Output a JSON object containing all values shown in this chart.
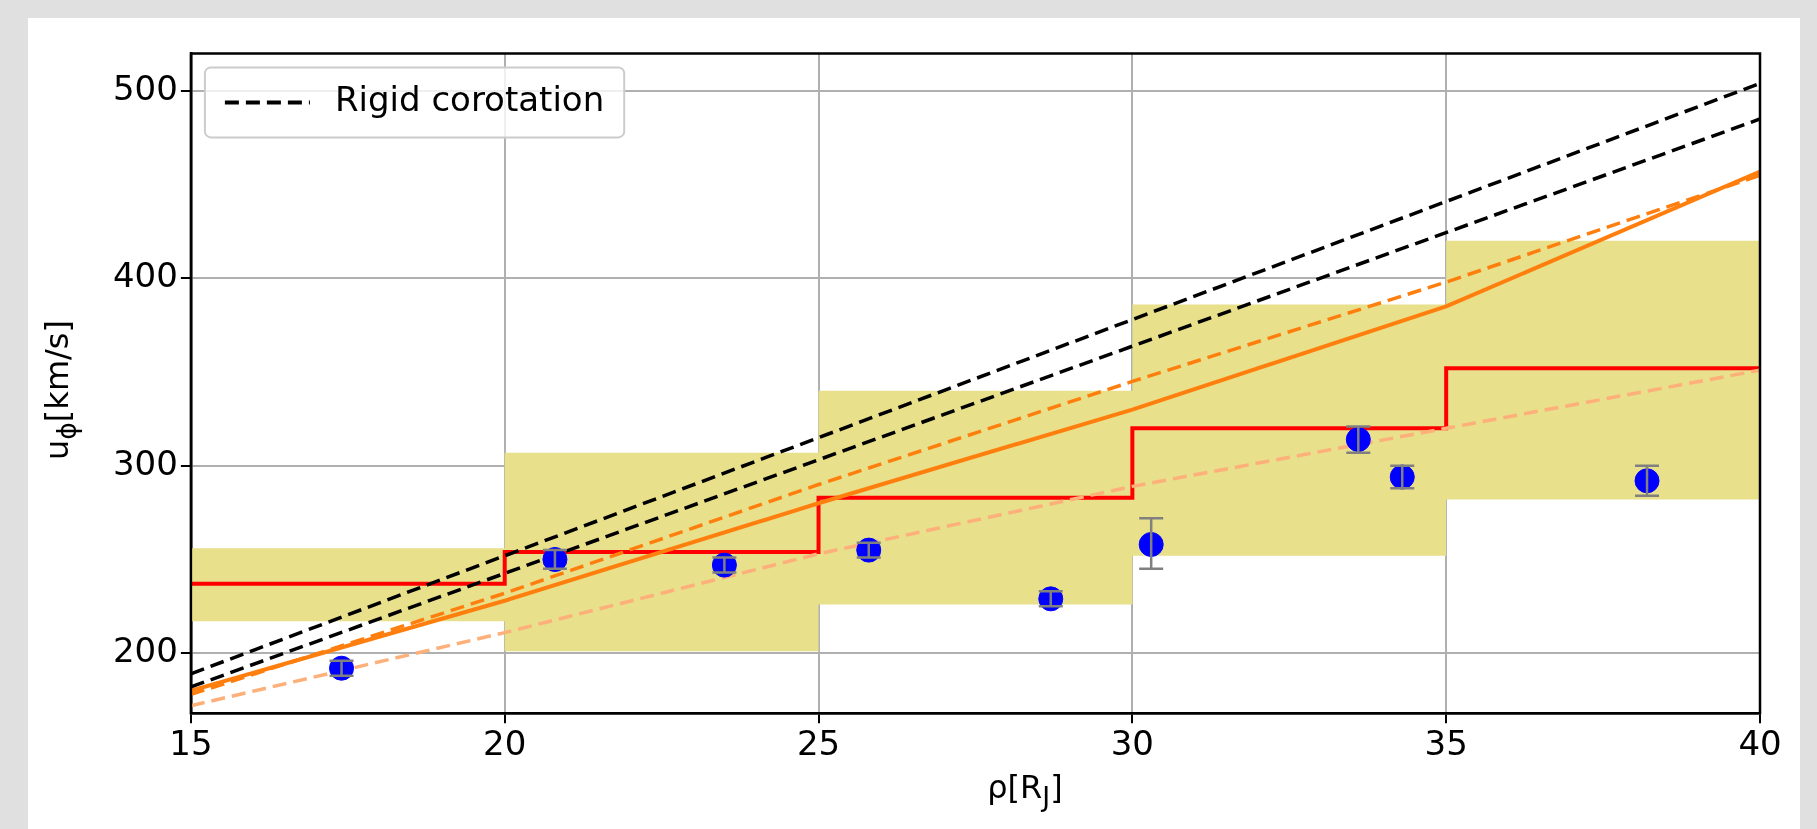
{
  "chart_data": {
    "type": "line",
    "xlabel": "ρ[R$_{J}$]",
    "ylabel": "u$_{ϕ}$[km/s]",
    "xlim": [
      15,
      40
    ],
    "ylim": [
      168,
      520
    ],
    "xticks": [
      15,
      20,
      25,
      30,
      35,
      40
    ],
    "yticks": [
      200,
      300,
      400,
      500
    ],
    "grid": true,
    "legend": "top left",
    "series": [
      {
        "type": "step",
        "color": "#ff0000",
        "x": [
          15,
          20,
          25,
          30,
          35,
          40
        ],
        "values": [
          237,
          254,
          283,
          320,
          352,
          352
        ],
        "lower": [
          217,
          201,
          226,
          252,
          282,
          282
        ],
        "upper": [
          256,
          307,
          340,
          386,
          420,
          420
        ]
      },
      {
        "name": "Rigid corotation",
        "color": "#000000",
        "line_style": "dashed",
        "x": [
          15,
          40
        ],
        "values": [
          189,
          504
        ]
      },
      {
        "color": "#000000",
        "line_style": "dashed",
        "x": [
          15,
          40
        ],
        "values": [
          182,
          485
        ]
      },
      {
        "color": "#ff7f0e",
        "line_style": "dashed",
        "x": [
          15,
          20,
          25,
          30,
          35,
          40
        ],
        "values": [
          178,
          232,
          290,
          345,
          398,
          455
        ]
      },
      {
        "color": "#ff7f0e",
        "line_style": "solid",
        "x": [
          15,
          20,
          25,
          30,
          35,
          40
        ],
        "values": [
          180,
          228,
          280,
          330,
          385,
          457
        ]
      },
      {
        "color": "#fdb07a",
        "line_style": "dashed",
        "x": [
          15,
          20,
          25,
          30,
          35,
          40
        ],
        "values": [
          172,
          211,
          253,
          289,
          320,
          351
        ]
      },
      {
        "type": "scatter",
        "color": "#0000ff",
        "marker": "circle",
        "x": [
          17.4,
          20.8,
          23.5,
          25.8,
          28.7,
          30.3,
          33.6,
          34.3,
          38.2
        ],
        "values": [
          192,
          250,
          247,
          255,
          229,
          258,
          314,
          294,
          292
        ],
        "errors": [
          4,
          5,
          4,
          4,
          4,
          [
            245,
            272
          ],
          7,
          6,
          8
        ]
      }
    ]
  }
}
